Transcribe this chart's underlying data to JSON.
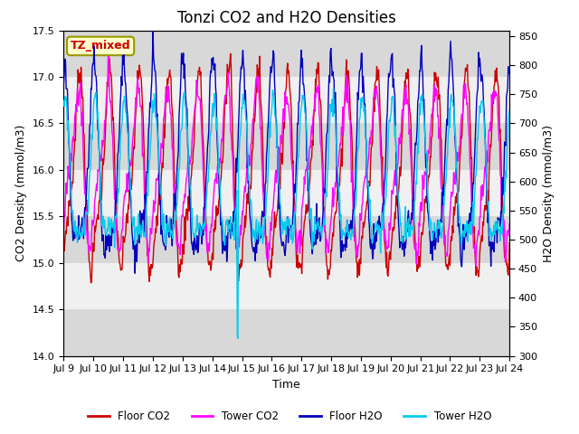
{
  "title": "Tonzi CO2 and H2O Densities",
  "xlabel": "Time",
  "ylabel_left": "CO2 Density (mmol/m3)",
  "ylabel_right": "H2O Density (mmol/m3)",
  "ylim_left": [
    14.0,
    17.5
  ],
  "ylim_right": [
    300,
    860
  ],
  "yticks_left": [
    14.0,
    14.5,
    15.0,
    15.5,
    16.0,
    16.5,
    17.0,
    17.5
  ],
  "yticks_right": [
    300,
    350,
    400,
    450,
    500,
    550,
    600,
    650,
    700,
    750,
    800,
    850
  ],
  "xtick_labels": [
    "Jul 9",
    "Jul 10",
    "Jul 11",
    "Jul 12",
    "Jul 13",
    "Jul 14",
    "Jul 15",
    "Jul 16",
    "Jul 17",
    "Jul 18",
    "Jul 19",
    "Jul 20",
    "Jul 21",
    "Jul 22",
    "Jul 23",
    "Jul 24"
  ],
  "xtick_positions": [
    0,
    1,
    2,
    3,
    4,
    5,
    6,
    7,
    8,
    9,
    10,
    11,
    12,
    13,
    14,
    15
  ],
  "colors": {
    "floor_co2": "#cc0000",
    "tower_co2": "#ff00ff",
    "floor_h2o": "#0000bb",
    "tower_h2o": "#00ccee"
  },
  "legend_labels": [
    "Floor CO2",
    "Tower CO2",
    "Floor H2O",
    "Tower H2O"
  ],
  "annotation_text": "TZ_mixed",
  "annotation_color": "#cc0000",
  "annotation_bbox_facecolor": "#ffffcc",
  "annotation_bbox_edgecolor": "#999900",
  "band_colors": [
    "#d8d8d8",
    "#f0f0f0"
  ],
  "title_fontsize": 12,
  "axis_label_fontsize": 9,
  "tick_fontsize": 8,
  "linewidth": 1.0,
  "figsize": [
    6.4,
    4.8
  ],
  "dpi": 100
}
